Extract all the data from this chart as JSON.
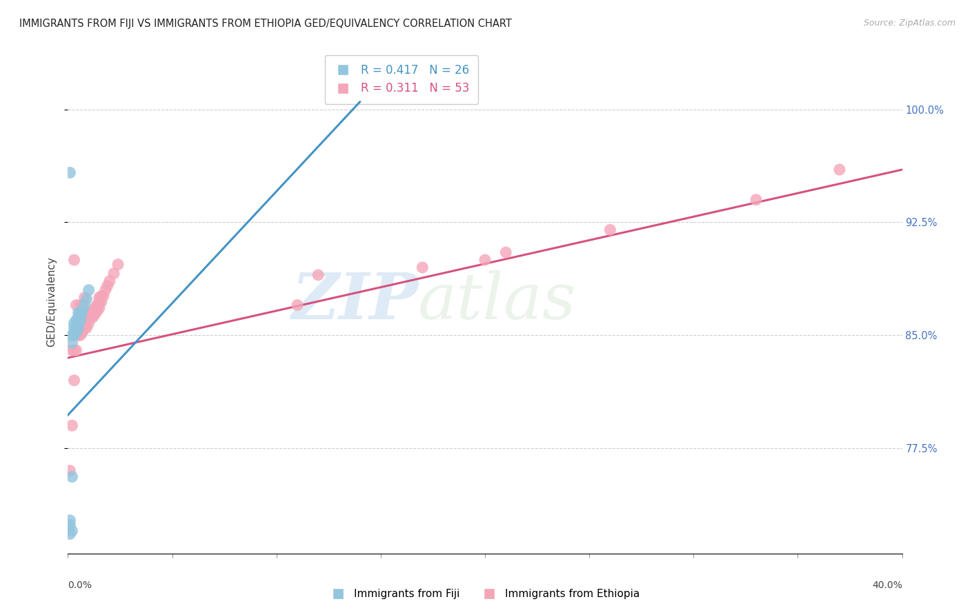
{
  "title": "IMMIGRANTS FROM FIJI VS IMMIGRANTS FROM ETHIOPIA GED/EQUIVALENCY CORRELATION CHART",
  "source": "Source: ZipAtlas.com",
  "ylabel": "GED/Equivalency",
  "ytick_values": [
    0.775,
    0.85,
    0.925,
    1.0
  ],
  "fiji_color": "#92c5de",
  "ethiopia_color": "#f4a5b8",
  "fiji_line_color": "#4393c3",
  "ethiopia_line_color": "#d6517d",
  "fiji_R": 0.417,
  "fiji_N": 26,
  "ethiopia_R": 0.311,
  "ethiopia_N": 53,
  "xmin": 0.0,
  "xmax": 0.4,
  "ymin": 0.705,
  "ymax": 1.04,
  "watermark_zip": "ZIP",
  "watermark_atlas": "atlas",
  "background_color": "#ffffff",
  "grid_color": "#cccccc",
  "fiji_x": [
    0.001,
    0.001,
    0.001,
    0.002,
    0.002,
    0.002,
    0.002,
    0.003,
    0.003,
    0.003,
    0.003,
    0.004,
    0.004,
    0.004,
    0.005,
    0.005,
    0.005,
    0.005,
    0.006,
    0.006,
    0.006,
    0.007,
    0.008,
    0.009,
    0.01,
    0.001
  ],
  "fiji_y": [
    0.718,
    0.724,
    0.727,
    0.72,
    0.756,
    0.845,
    0.85,
    0.85,
    0.852,
    0.855,
    0.858,
    0.852,
    0.855,
    0.86,
    0.855,
    0.858,
    0.862,
    0.865,
    0.86,
    0.862,
    0.865,
    0.866,
    0.87,
    0.874,
    0.88,
    0.958
  ],
  "ethiopia_x": [
    0.001,
    0.002,
    0.002,
    0.003,
    0.003,
    0.003,
    0.004,
    0.004,
    0.005,
    0.005,
    0.005,
    0.006,
    0.006,
    0.006,
    0.007,
    0.007,
    0.007,
    0.008,
    0.008,
    0.008,
    0.009,
    0.009,
    0.009,
    0.01,
    0.01,
    0.01,
    0.011,
    0.011,
    0.012,
    0.012,
    0.013,
    0.013,
    0.014,
    0.014,
    0.015,
    0.015,
    0.015,
    0.016,
    0.016,
    0.017,
    0.018,
    0.019,
    0.02,
    0.022,
    0.024,
    0.11,
    0.12,
    0.17,
    0.2,
    0.21,
    0.26,
    0.33,
    0.37
  ],
  "ethiopia_y": [
    0.76,
    0.79,
    0.84,
    0.82,
    0.84,
    0.9,
    0.84,
    0.87,
    0.85,
    0.855,
    0.86,
    0.85,
    0.855,
    0.87,
    0.852,
    0.855,
    0.87,
    0.855,
    0.86,
    0.875,
    0.855,
    0.86,
    0.862,
    0.858,
    0.862,
    0.865,
    0.862,
    0.865,
    0.862,
    0.866,
    0.864,
    0.868,
    0.866,
    0.87,
    0.868,
    0.872,
    0.875,
    0.872,
    0.876,
    0.876,
    0.88,
    0.883,
    0.886,
    0.891,
    0.897,
    0.87,
    0.89,
    0.895,
    0.9,
    0.905,
    0.92,
    0.94,
    0.96
  ],
  "fiji_line_x0": 0.0,
  "fiji_line_y0": 0.797,
  "fiji_line_x1": 0.14,
  "fiji_line_y1": 1.005,
  "ethiopia_line_x0": 0.0,
  "ethiopia_line_y0": 0.835,
  "ethiopia_line_x1": 0.4,
  "ethiopia_line_y1": 0.96
}
